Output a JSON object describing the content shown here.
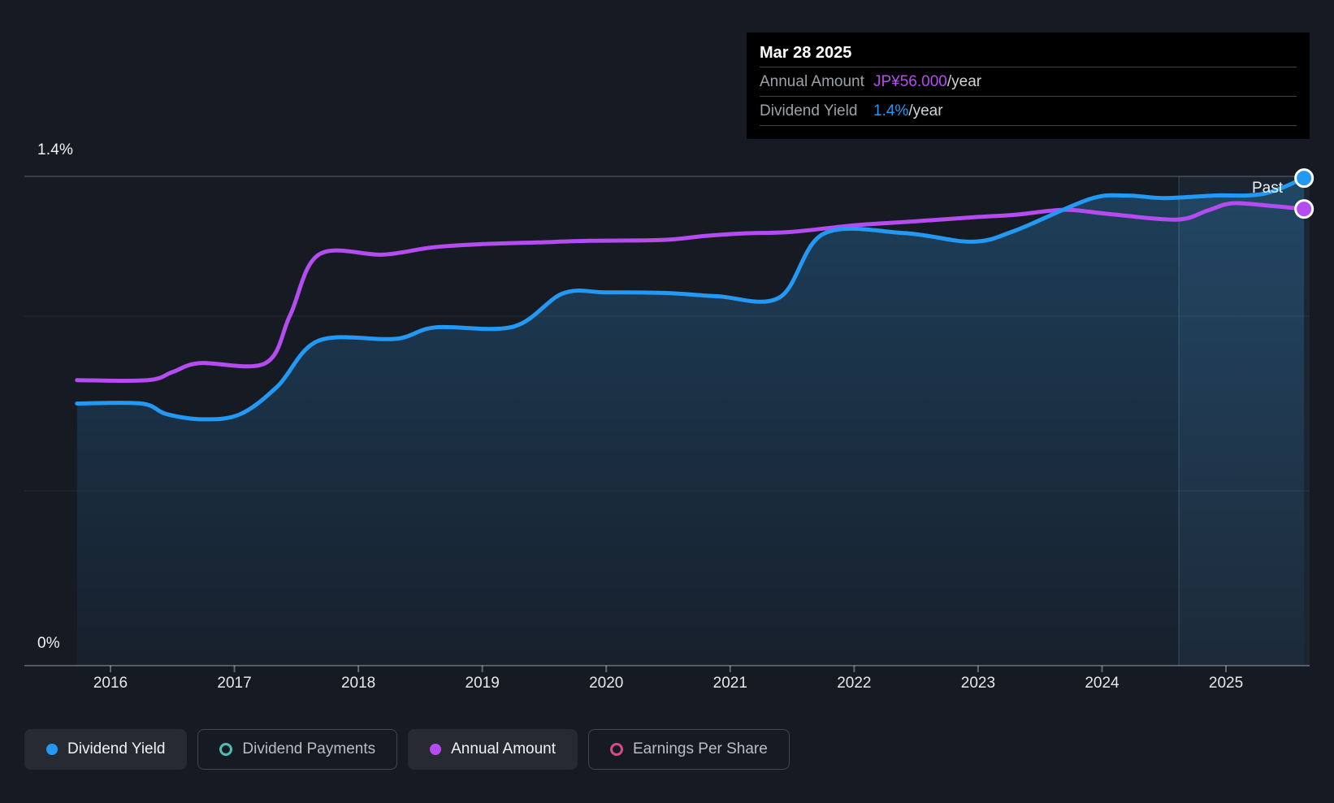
{
  "labels": {
    "y_top": "1.4%",
    "y_bottom": "0%",
    "past": "Past"
  },
  "tooltip": {
    "title": "Mar 28 2025",
    "rows": [
      {
        "label": "Annual Amount",
        "value": "JP¥56.000",
        "suffix": "/year",
        "color": "#b44cf0"
      },
      {
        "label": "Dividend Yield",
        "value": "1.4%",
        "suffix": "/year",
        "color": "#2499f4"
      }
    ]
  },
  "legend": [
    {
      "label": "Dividend Yield",
      "marker": "filled",
      "color": "#2499f4",
      "active": true
    },
    {
      "label": "Dividend Payments",
      "marker": "outline",
      "color": "#4dbdb5",
      "active": false
    },
    {
      "label": "Annual Amount",
      "marker": "filled",
      "color": "#b44cf0",
      "active": true
    },
    {
      "label": "Earnings Per Share",
      "marker": "outline",
      "color": "#d44b8c",
      "active": false
    }
  ],
  "chart_data": {
    "type": "line",
    "title": "Dividend yield and annual dividend amount history",
    "x_ticks": [
      2016,
      2017,
      2018,
      2019,
      2020,
      2021,
      2022,
      2023,
      2024,
      2025
    ],
    "x_domain": [
      2015.73,
      2025.64
    ],
    "yield_axis": {
      "min": 0,
      "max": 1.4,
      "top_label": "1.4%",
      "bottom_label": "0%",
      "gridlines": [
        {
          "value": 1.4,
          "strong": true
        },
        {
          "value": 1.0,
          "strong": false
        },
        {
          "value": 0.5,
          "strong": false
        }
      ]
    },
    "amount_axis": {
      "min": 0,
      "max": 60,
      "unit": "JP¥"
    },
    "past_divider_year": 2024.62,
    "legend_position": "bottom",
    "series": [
      {
        "name": "Dividend Yield",
        "unit": "%",
        "color": "#2499f4",
        "axis": "yield",
        "end_value": "1.4%/year",
        "points": [
          [
            2015.73,
            0.75
          ],
          [
            2016.25,
            0.75
          ],
          [
            2016.45,
            0.72
          ],
          [
            2016.75,
            0.705
          ],
          [
            2017.05,
            0.72
          ],
          [
            2017.35,
            0.8
          ],
          [
            2017.68,
            0.93
          ],
          [
            2018.3,
            0.935
          ],
          [
            2018.62,
            0.968
          ],
          [
            2019.25,
            0.97
          ],
          [
            2019.65,
            1.065
          ],
          [
            2020.0,
            1.068
          ],
          [
            2020.5,
            1.066
          ],
          [
            2020.9,
            1.057
          ],
          [
            2021.4,
            1.054
          ],
          [
            2021.75,
            1.235
          ],
          [
            2022.4,
            1.238
          ],
          [
            2022.95,
            1.213
          ],
          [
            2023.3,
            1.245
          ],
          [
            2023.9,
            1.335
          ],
          [
            2024.2,
            1.345
          ],
          [
            2024.5,
            1.338
          ],
          [
            2024.9,
            1.345
          ],
          [
            2025.3,
            1.35
          ],
          [
            2025.63,
            1.395
          ]
        ]
      },
      {
        "name": "Annual Amount",
        "unit": "JP¥",
        "color": "#b44cf0",
        "axis": "amount",
        "end_value": "JP¥56.000/year",
        "points": [
          [
            2015.73,
            35.0
          ],
          [
            2016.3,
            35.0
          ],
          [
            2016.5,
            36.0
          ],
          [
            2016.72,
            37.1
          ],
          [
            2017.25,
            37.1
          ],
          [
            2017.45,
            43.0
          ],
          [
            2017.68,
            50.4
          ],
          [
            2018.2,
            50.4
          ],
          [
            2018.6,
            51.3
          ],
          [
            2019.0,
            51.7
          ],
          [
            2019.45,
            51.9
          ],
          [
            2019.87,
            52.1
          ],
          [
            2020.45,
            52.2
          ],
          [
            2020.8,
            52.7
          ],
          [
            2021.1,
            53.0
          ],
          [
            2021.5,
            53.2
          ],
          [
            2022.0,
            54.0
          ],
          [
            2022.5,
            54.5
          ],
          [
            2022.97,
            55.0
          ],
          [
            2023.3,
            55.3
          ],
          [
            2023.7,
            55.9
          ],
          [
            2024.05,
            55.4
          ],
          [
            2024.6,
            54.7
          ],
          [
            2024.85,
            55.8
          ],
          [
            2025.05,
            56.7
          ],
          [
            2025.35,
            56.4
          ],
          [
            2025.63,
            56.0
          ]
        ]
      }
    ]
  }
}
